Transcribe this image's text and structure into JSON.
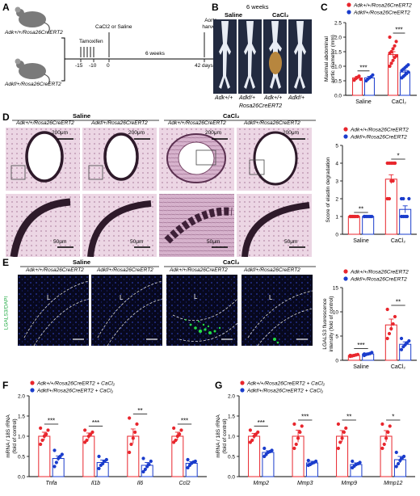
{
  "colors": {
    "wt": "#e8262d",
    "ko": "#1a3ccc",
    "tissue_pink": "#d8a8c8",
    "fluor_bg": "#0a0a28",
    "fluor_green": "#22dd44"
  },
  "panels": {
    "A": {
      "letter": "A",
      "mouse_top_label": "Adk+/+/Rosa26CreERT2",
      "mouse_bottom_label": "Adkf/+/Rosa26CreERT2",
      "tamoxifen": "Tamoxifen",
      "cacl2": "CaCl2 or Saline",
      "weeks": "6 weeks",
      "aorta": "Aorta harvest",
      "ticks": [
        "-15",
        "-10",
        "0",
        "42 days"
      ]
    },
    "B": {
      "letter": "B",
      "top": "6 weeks",
      "group_saline": "Saline",
      "group_cacl2": "CaCl2",
      "genotypes": [
        "Adk+/+",
        "Adkf/+",
        "Adk+/+",
        "Adkf/+"
      ],
      "bottom": "Rosa26CreERT2"
    },
    "C": {
      "letter": "C",
      "legend": [
        "Adk+/+/Rosa26CreERT2",
        "Adkf/+/Rosa26CreERT2"
      ],
      "ylabel": "Maximal abdominal aortic diameter (mm)",
      "yticks": [
        "0.0",
        "0.5",
        "1.0",
        "1.5",
        "2.0",
        "2.5"
      ],
      "groups": [
        "Saline",
        "CaCl2"
      ],
      "sig": [
        "***",
        "***"
      ]
    },
    "D": {
      "letter": "D",
      "head_saline": "Saline",
      "head_cacl2": "CaCl2",
      "col_labels": [
        "Adk+/+/Rosa26CreERT2",
        "Adkf/+/Rosa26CreERT2",
        "Adk+/+/Rosa26CreERT2",
        "Adkf/+/Rosa26CreERT2"
      ],
      "scale_top": "200μm",
      "scale_bottom": "50μm",
      "legend": [
        "Adk+/+/Rosa26CreERT2",
        "Adkf/+/Rosa26CreERT2"
      ],
      "ylabel": "Score of elastin degradation",
      "yticks": [
        "0",
        "1",
        "2",
        "3",
        "4",
        "5"
      ],
      "groups": [
        "Saline",
        "CaCl2"
      ],
      "sig": [
        "**",
        "*"
      ]
    },
    "E": {
      "letter": "E",
      "head_saline": "Saline",
      "head_cacl2": "CaCl2",
      "col_labels": [
        "Adk+/+/Rosa26CreERT2",
        "Adkf/+/Rosa26CreERT2",
        "Adk+/+/Rosa26CreERT2",
        "Adkf/+/Rosa26CreERT2"
      ],
      "side_label": "LGALS3/DAPI",
      "lumen": "L",
      "legend": [
        "Adk+/+/Rosa26CreERT2",
        "Adkf/+/Rosa26CreERT2"
      ],
      "ylabel": "LGALS3 fluorescence intensity (fold of control)",
      "yticks": [
        "0",
        "5",
        "10",
        "15"
      ],
      "groups": [
        "Saline",
        "CaCl2"
      ],
      "sig": [
        "***",
        "**"
      ]
    },
    "F": {
      "letter": "F",
      "legend": [
        "Adk+/+/Rosa26CreERT2 + CaCl2",
        "Adkf/+/Rosa26CreERT2 + CaCl2"
      ],
      "ylabel": "mRNA / 18S rRNA (fold of control)",
      "yticks": [
        "0.0",
        "0.5",
        "1.0",
        "1.5",
        "2.0"
      ],
      "genes": [
        "Tnfa",
        "Il1b",
        "Il6",
        "Ccl2"
      ],
      "sig": [
        "***",
        "***",
        "**",
        "***"
      ]
    },
    "G": {
      "letter": "G",
      "legend": [
        "Adk+/+/Rosa26CreERT2 + CaCl2",
        "Adkf/+/Rosa26CreERT2 + CaCl2"
      ],
      "ylabel": "mRNA / 18S rRNA (fold of control)",
      "yticks": [
        "0.0",
        "0.5",
        "1.0",
        "1.5",
        "2.0"
      ],
      "genes": [
        "Mmp2",
        "Mmp3",
        "Mmp9",
        "Mmp12"
      ],
      "sig": [
        "***",
        "***",
        "**",
        "*"
      ]
    }
  },
  "chart_data": [
    {
      "panel": "C",
      "type": "bar",
      "categories": [
        "Saline",
        "CaCl2"
      ],
      "ylabel": "Maximal abdominal aortic diameter (mm)",
      "ylim": [
        0,
        2.5
      ],
      "series": [
        {
          "name": "Adk+/+/Rosa26CreERT2",
          "values": [
            0.6,
            1.4
          ],
          "err": [
            0.05,
            0.1
          ],
          "points": [
            [
              0.52,
              0.58,
              0.62,
              0.66,
              0.55
            ],
            [
              1.0,
              1.1,
              1.2,
              1.3,
              1.35,
              1.45,
              1.5,
              1.6,
              1.7,
              1.85,
              2.0
            ]
          ]
        },
        {
          "name": "Adkf/+/Rosa26CreERT2",
          "values": [
            0.6,
            0.8
          ],
          "err": [
            0.05,
            0.06
          ],
          "points": [
            [
              0.5,
              0.56,
              0.6,
              0.64,
              0.7
            ],
            [
              0.6,
              0.65,
              0.7,
              0.75,
              0.8,
              0.85,
              0.9,
              0.95,
              1.0,
              1.05
            ]
          ]
        }
      ]
    },
    {
      "panel": "D",
      "type": "bar",
      "categories": [
        "Saline",
        "CaCl2"
      ],
      "ylabel": "Score of elastin degradation",
      "ylim": [
        0,
        5
      ],
      "series": [
        {
          "name": "Adk+/+/Rosa26CreERT2",
          "values": [
            1.0,
            3.1
          ],
          "err": [
            0,
            0.25
          ],
          "points": [
            [
              1,
              1,
              1,
              1,
              1,
              1,
              1,
              1
            ],
            [
              2,
              2,
              3,
              3,
              4,
              4,
              4,
              4,
              4,
              4
            ]
          ]
        },
        {
          "name": "Adkf/+/Rosa26CreERT2",
          "values": [
            1.0,
            1.4
          ],
          "err": [
            0,
            0.2
          ],
          "points": [
            [
              1,
              1,
              1,
              1,
              1,
              1
            ],
            [
              1,
              1,
              1,
              1,
              2,
              2,
              2
            ]
          ]
        }
      ]
    },
    {
      "panel": "E",
      "type": "bar",
      "categories": [
        "Saline",
        "CaCl2"
      ],
      "ylabel": "LGALS3 fluorescence intensity (fold of control)",
      "ylim": [
        0,
        15
      ],
      "series": [
        {
          "name": "Adk+/+/Rosa26CreERT2",
          "values": [
            1.0,
            7.3
          ],
          "err": [
            0.2,
            1.2
          ],
          "points": [
            [
              0.8,
              0.9,
              1.0,
              1.1,
              1.2,
              1.0
            ],
            [
              4.5,
              5.5,
              6.5,
              7.5,
              9.0,
              10.5
            ]
          ]
        },
        {
          "name": "Adkf/+/Rosa26CreERT2",
          "values": [
            1.3,
            3.3
          ],
          "err": [
            0.2,
            0.5
          ],
          "points": [
            [
              1.0,
              1.2,
              1.3,
              1.4,
              1.6,
              1.3
            ],
            [
              2.2,
              2.8,
              3.2,
              3.6,
              4.0,
              4.5
            ]
          ]
        }
      ]
    },
    {
      "panel": "F",
      "type": "bar",
      "categories": [
        "Tnfa",
        "Il1b",
        "Il6",
        "Ccl2"
      ],
      "ylabel": "mRNA / 18S rRNA (fold of control)",
      "ylim": [
        0,
        2.0
      ],
      "series": [
        {
          "name": "Adk+/+/Rosa26CreERT2 + CaCl2",
          "values": [
            1.0,
            1.0,
            1.0,
            1.0
          ],
          "err": [
            0.1,
            0.08,
            0.18,
            0.1
          ],
          "points": [
            [
              0.8,
              0.9,
              1.0,
              1.05,
              1.15,
              1.2
            ],
            [
              0.85,
              0.9,
              1.0,
              1.05,
              1.1,
              1.15
            ],
            [
              0.6,
              0.8,
              0.95,
              1.1,
              1.3,
              1.45
            ],
            [
              0.85,
              0.9,
              1.0,
              1.05,
              1.15,
              1.2
            ]
          ]
        },
        {
          "name": "Adkf/+/Rosa26CreERT2 + CaCl2",
          "values": [
            0.45,
            0.35,
            0.28,
            0.33
          ],
          "err": [
            0.06,
            0.06,
            0.07,
            0.04
          ],
          "points": [
            [
              0.25,
              0.35,
              0.45,
              0.5,
              0.55,
              0.65
            ],
            [
              0.2,
              0.28,
              0.32,
              0.38,
              0.42,
              0.5
            ],
            [
              0.12,
              0.18,
              0.25,
              0.3,
              0.38,
              0.45
            ],
            [
              0.22,
              0.28,
              0.33,
              0.36,
              0.38,
              0.42
            ]
          ]
        }
      ]
    },
    {
      "panel": "G",
      "type": "bar",
      "categories": [
        "Mmp2",
        "Mmp3",
        "Mmp9",
        "Mmp12"
      ],
      "ylabel": "mRNA / 18S rRNA (fold of control)",
      "ylim": [
        0,
        2.0
      ],
      "series": [
        {
          "name": "Adk+/+/Rosa26CreERT2 + CaCl2",
          "values": [
            1.0,
            1.0,
            1.0,
            1.0
          ],
          "err": [
            0.07,
            0.15,
            0.14,
            0.14
          ],
          "points": [
            [
              0.85,
              0.9,
              1.0,
              1.05,
              1.1,
              1.15
            ],
            [
              0.7,
              0.8,
              0.95,
              1.1,
              1.25,
              1.3
            ],
            [
              0.7,
              0.85,
              0.95,
              1.1,
              1.2,
              1.3
            ],
            [
              0.7,
              0.8,
              0.95,
              1.1,
              1.25,
              1.3
            ]
          ]
        },
        {
          "name": "Adkf/+/Rosa26CreERT2 + CaCl2",
          "values": [
            0.6,
            0.34,
            0.3,
            0.42
          ],
          "err": [
            0.04,
            0.04,
            0.04,
            0.08
          ],
          "points": [
            [
              0.5,
              0.55,
              0.6,
              0.62,
              0.65,
              0.7
            ],
            [
              0.28,
              0.3,
              0.33,
              0.35,
              0.38,
              0.4
            ],
            [
              0.22,
              0.26,
              0.3,
              0.32,
              0.35,
              0.38
            ],
            [
              0.25,
              0.32,
              0.4,
              0.45,
              0.5,
              0.6
            ]
          ]
        }
      ]
    }
  ]
}
